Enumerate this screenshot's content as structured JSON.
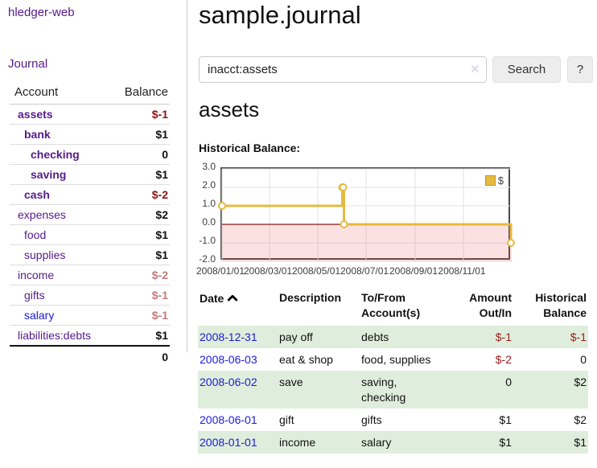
{
  "brand": "hledger-web",
  "nav": {
    "journal": "Journal"
  },
  "accounts_panel": {
    "columns": {
      "account": "Account",
      "balance": "Balance"
    },
    "rows": [
      {
        "name": "assets",
        "balance": "$-1"
      },
      {
        "name": "bank",
        "balance": "$1"
      },
      {
        "name": "checking",
        "balance": "0"
      },
      {
        "name": "saving",
        "balance": "$1"
      },
      {
        "name": "cash",
        "balance": "$-2"
      },
      {
        "name": "expenses",
        "balance": "$2"
      },
      {
        "name": "food",
        "balance": "$1"
      },
      {
        "name": "supplies",
        "balance": "$1"
      },
      {
        "name": "income",
        "balance": "$-2"
      },
      {
        "name": "gifts",
        "balance": "$-1"
      },
      {
        "name": "salary",
        "balance": "$-1"
      },
      {
        "name": "liabilities:debts",
        "balance": "$1"
      }
    ],
    "total": "0"
  },
  "page": {
    "title": "sample.journal",
    "account_heading": "assets",
    "chart_label": "Historical Balance:"
  },
  "search": {
    "value": "inacct:assets",
    "clear_icon": "✕",
    "search_button": "Search",
    "help_button": "?"
  },
  "chart_data": {
    "type": "line",
    "title": "Historical Balance",
    "step": true,
    "x_range": [
      "2008-01-01",
      "2009-01-01"
    ],
    "x_ticks": [
      "2008/01/01",
      "2008/03/01",
      "2008/05/01",
      "2008/07/01",
      "2008/09/01",
      "2008/11/01"
    ],
    "y_ticks": [
      3.0,
      2.0,
      1.0,
      0.0,
      -1.0,
      -2.0
    ],
    "ylim": [
      -2,
      3
    ],
    "grid": true,
    "legend_position": "top-right",
    "negative_region_highlight": true,
    "series": [
      {
        "name": "$",
        "color": "#e5ba3f",
        "points": [
          [
            "2008-01-01",
            1
          ],
          [
            "2008-06-01",
            2
          ],
          [
            "2008-06-02",
            2
          ],
          [
            "2008-06-03",
            0
          ],
          [
            "2008-12-31",
            -1
          ]
        ]
      }
    ]
  },
  "register": {
    "columns": {
      "date": "Date",
      "description": "Description",
      "accounts": "To/From Account(s)",
      "amount": "Amount Out/In",
      "balance": "Historical Balance"
    },
    "rows": [
      {
        "date": "2008-12-31",
        "description": "pay off",
        "accounts": "debts",
        "amount": "$-1",
        "balance": "$-1"
      },
      {
        "date": "2008-06-03",
        "description": "eat & shop",
        "accounts": "food, supplies",
        "amount": "$-2",
        "balance": "0"
      },
      {
        "date": "2008-06-02",
        "description": "save",
        "accounts": "saving, checking",
        "amount": "0",
        "balance": "$2"
      },
      {
        "date": "2008-06-01",
        "description": "gift",
        "accounts": "gifts",
        "amount": "$1",
        "balance": "$2"
      },
      {
        "date": "2008-01-01",
        "description": "income",
        "accounts": "salary",
        "amount": "$1",
        "balance": "$1"
      }
    ]
  }
}
